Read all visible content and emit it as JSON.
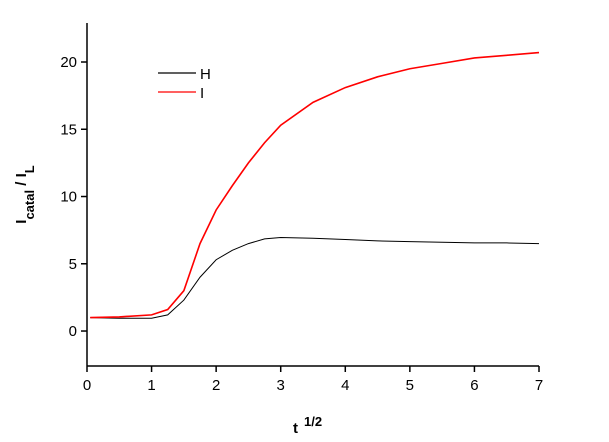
{
  "chart_data": {
    "type": "line",
    "x_label": [
      {
        "text": "t"
      },
      {
        "text": "1/2",
        "sup": true
      }
    ],
    "y_label": [
      {
        "text": "I"
      },
      {
        "text": "catal",
        "sub": true
      },
      {
        "text": " / I"
      },
      {
        "text": "L",
        "sub": true
      }
    ],
    "x": [
      0.05,
      0.5,
      1.0,
      1.25,
      1.5,
      1.75,
      2.0,
      2.25,
      2.5,
      2.75,
      3.0,
      3.5,
      4.0,
      4.5,
      5.0,
      5.5,
      6.0,
      6.5,
      7.0
    ],
    "series": [
      {
        "name": "H",
        "color": "#000000",
        "values": [
          1.0,
          0.95,
          0.95,
          1.2,
          2.3,
          4.0,
          5.3,
          6.0,
          6.5,
          6.85,
          6.95,
          6.9,
          6.8,
          6.7,
          6.65,
          6.6,
          6.55,
          6.55,
          6.5
        ]
      },
      {
        "name": "I",
        "color": "#ff0000",
        "values": [
          1.0,
          1.05,
          1.2,
          1.6,
          3.0,
          6.5,
          9.0,
          10.8,
          12.5,
          14.0,
          15.3,
          17.0,
          18.1,
          18.9,
          19.5,
          19.9,
          20.3,
          20.5,
          20.7
        ]
      }
    ],
    "xlim": [
      0,
      7
    ],
    "xticks": [
      0,
      1,
      2,
      3,
      4,
      5,
      6,
      7
    ],
    "ylim": [
      -2.6,
      22.9
    ],
    "yticks": [
      0,
      5,
      10,
      15,
      20
    ],
    "legend": "top-left",
    "grid": false
  }
}
